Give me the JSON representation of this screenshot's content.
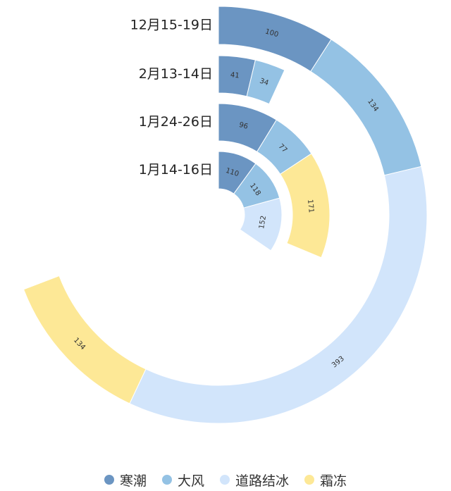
{
  "chart_data": {
    "type": "polar-stacked-bar",
    "categories": [
      "1月14-16日",
      "1月24-26日",
      "2月13-14日",
      "12月15-19日"
    ],
    "series": [
      {
        "name": "寒潮",
        "color": "#6b95c2",
        "values": [
          110,
          96,
          41,
          100
        ]
      },
      {
        "name": "大风",
        "color": "#94c2e4",
        "values": [
          118,
          77,
          34,
          134
        ]
      },
      {
        "name": "道路结冰",
        "color": "#d2e5fb",
        "values": [
          152,
          0,
          0,
          393
        ]
      },
      {
        "name": "霜冻",
        "color": "#fde896",
        "values": [
          0,
          171,
          0,
          134
        ]
      }
    ],
    "angle_max": 1100,
    "legend_position": "bottom"
  },
  "legend": {
    "items": [
      "寒潮",
      "大风",
      "道路结冰",
      "霜冻"
    ]
  }
}
